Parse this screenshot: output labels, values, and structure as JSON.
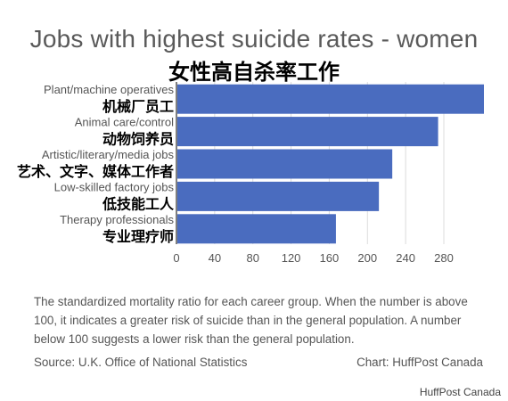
{
  "chart_data": {
    "type": "bar",
    "orientation": "horizontal",
    "title": "Jobs with highest suicide rates - women",
    "subtitle": "女性高自杀率工作",
    "categories": [
      "Plant/machine operatives",
      "Animal care/control",
      "Artistic/literary/media jobs",
      "Low-skilled factory jobs",
      "Therapy professionals"
    ],
    "categories_cn": [
      "机械厂员工",
      "动物饲养员",
      "艺术、文字、媒体工作者",
      "低技能工人",
      "专业理疗师"
    ],
    "values": [
      322,
      274,
      226,
      212,
      167
    ],
    "x_ticks": [
      "0",
      "40",
      "80",
      "120",
      "160",
      "200",
      "240",
      "280"
    ],
    "xlim": [
      0,
      322
    ],
    "grid": "vertical",
    "bar_color": "#4a6cbf"
  },
  "note": "The standardized mortality ratio for each career group. When the number is above 100, it indicates a greater risk of suicide than in the general population. A number below 100 suggests a lower risk than the general population.",
  "source": "Source: U.K. Office of National Statistics",
  "credit": "Chart: HuffPost Canada",
  "watermark": "HuffPost Canada"
}
